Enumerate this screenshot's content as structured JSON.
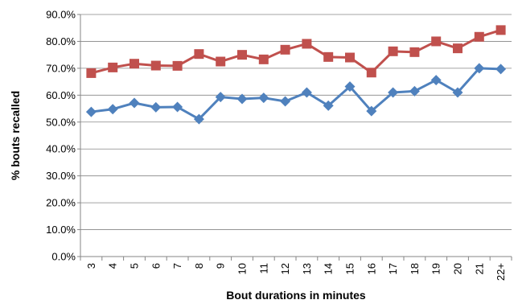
{
  "chart_data": {
    "type": "line",
    "title": "",
    "xlabel": "Bout durations in minutes",
    "ylabel": "% bouts recalled",
    "categories": [
      "3",
      "4",
      "5",
      "6",
      "7",
      "8",
      "9",
      "10",
      "11",
      "12",
      "13",
      "14",
      "15",
      "16",
      "17",
      "18",
      "19",
      "20",
      "21",
      "22+"
    ],
    "ylim": [
      0,
      90
    ],
    "y_ticks": [
      "0.0%",
      "10.0%",
      "20.0%",
      "30.0%",
      "40.0%",
      "50.0%",
      "60.0%",
      "70.0%",
      "80.0%",
      "90.0%"
    ],
    "y_tick_values": [
      0,
      10,
      20,
      30,
      40,
      50,
      60,
      70,
      80,
      90
    ],
    "grid": "horizontal",
    "legend": "none",
    "series": [
      {
        "color": "#C0504D",
        "marker": "square",
        "values": [
          68.2,
          70.3,
          71.7,
          71.0,
          70.9,
          75.3,
          72.5,
          75.0,
          73.3,
          76.9,
          79.1,
          74.2,
          74.0,
          68.4,
          76.3,
          76.0,
          80.0,
          77.4,
          81.7,
          84.2
        ]
      },
      {
        "color": "#4F81BD",
        "marker": "diamond",
        "values": [
          53.8,
          54.8,
          57.1,
          55.5,
          55.6,
          51.1,
          59.3,
          58.6,
          59.0,
          57.7,
          61.0,
          56.1,
          63.2,
          54.1,
          61.0,
          61.5,
          65.6,
          61.0,
          70.0,
          69.7
        ]
      }
    ]
  }
}
